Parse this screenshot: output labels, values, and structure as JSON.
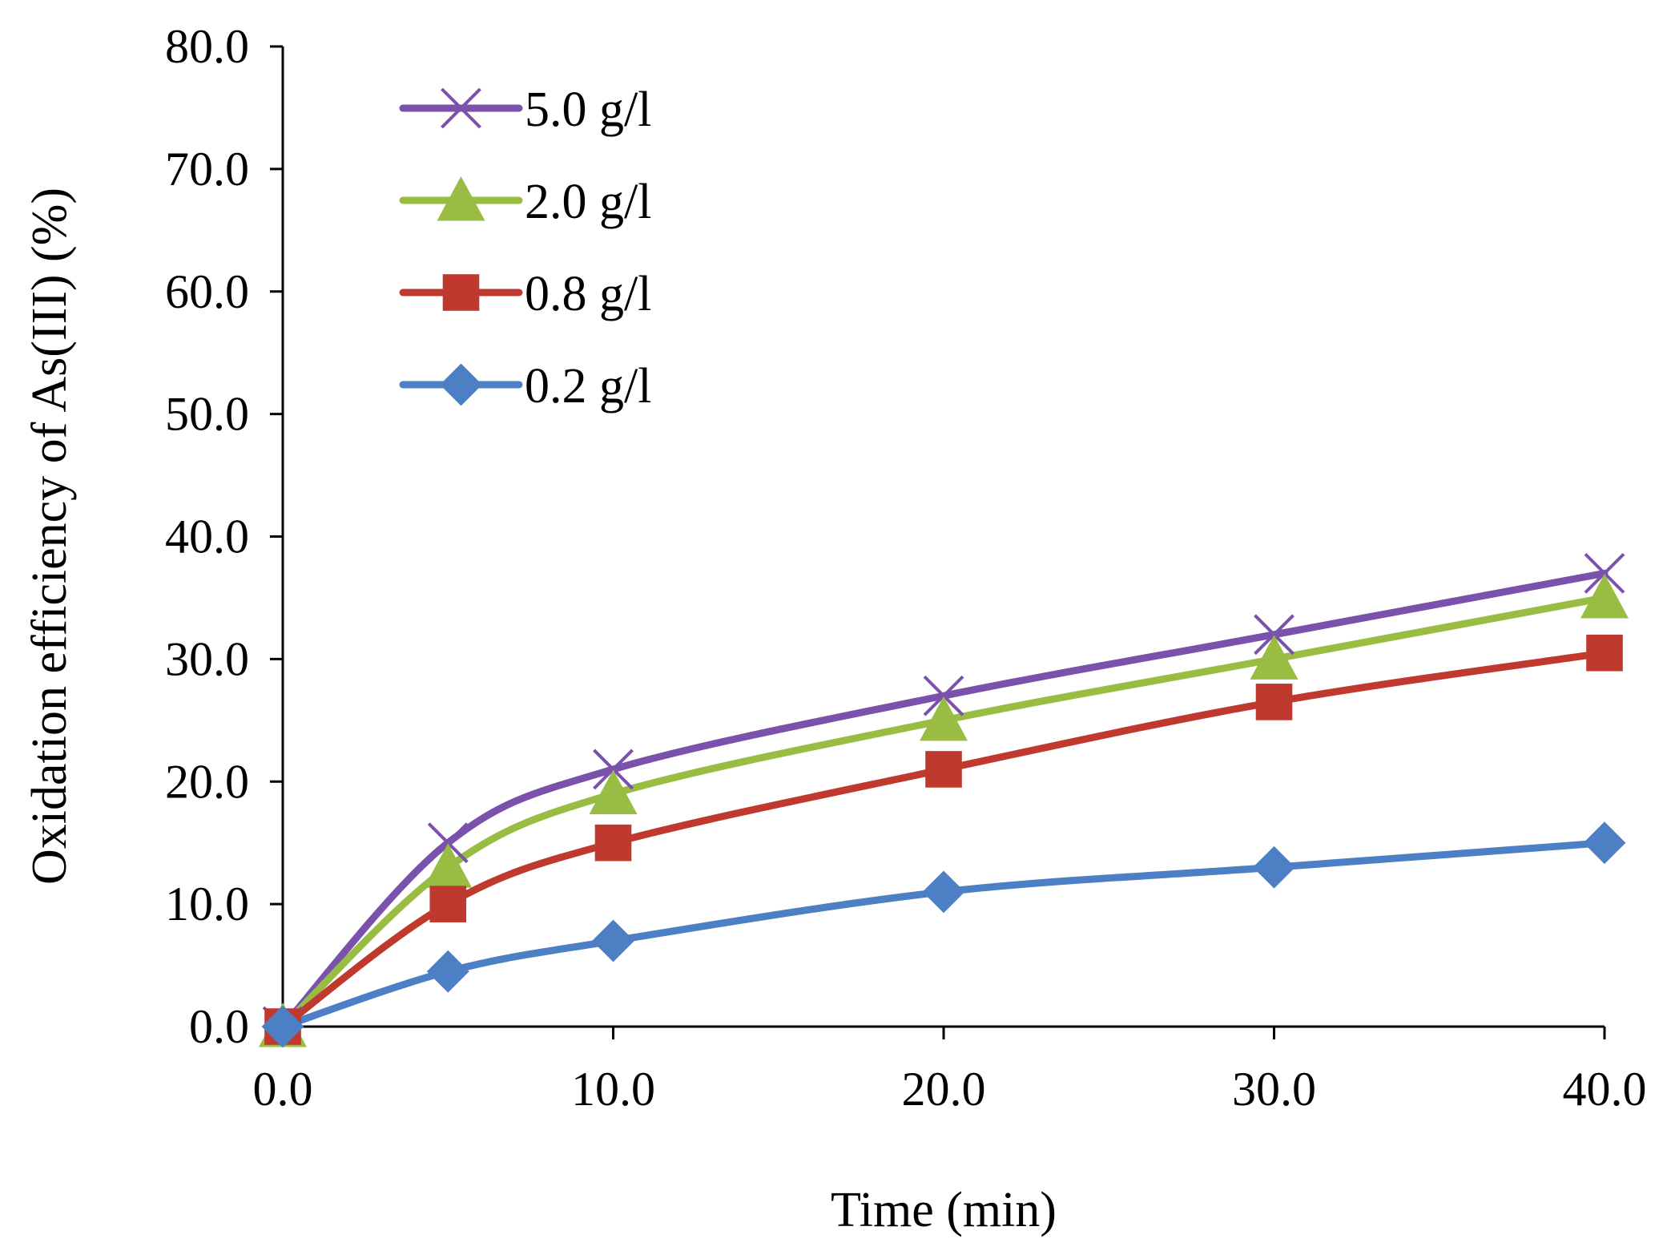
{
  "chart_data": {
    "type": "line",
    "title": "",
    "xlabel": "Time (min)",
    "ylabel": "Oxidation efficiency of As(III) (%)",
    "xlim": [
      0,
      40
    ],
    "ylim": [
      0,
      80
    ],
    "xticks": [
      0,
      10,
      20,
      30,
      40
    ],
    "xtick_labels": [
      "0.0",
      "10.0",
      "20.0",
      "30.0",
      "40.0"
    ],
    "yticks": [
      0,
      10,
      20,
      30,
      40,
      50,
      60,
      70,
      80
    ],
    "ytick_labels": [
      "0.0",
      "10.0",
      "20.0",
      "30.0",
      "40.0",
      "50.0",
      "60.0",
      "70.0",
      "80.0"
    ],
    "grid": false,
    "legend_position": "top-left",
    "x": [
      0,
      5,
      10,
      20,
      30,
      40
    ],
    "series": [
      {
        "name": "5.0 g/l",
        "marker": "x-icon",
        "color": "#7b52ab",
        "values": [
          0,
          15,
          21,
          27,
          32,
          37
        ]
      },
      {
        "name": "2.0 g/l",
        "marker": "triangle-icon",
        "color": "#98bd42",
        "values": [
          0,
          13,
          19,
          25,
          30,
          35
        ]
      },
      {
        "name": "0.8 g/l",
        "marker": "square-icon",
        "color": "#c0392f",
        "values": [
          0,
          10,
          15,
          21,
          26.5,
          30.5
        ]
      },
      {
        "name": "0.2 g/l",
        "marker": "diamond-icon",
        "color": "#4c7fc4",
        "values": [
          0,
          4.5,
          7,
          11,
          13,
          15
        ]
      }
    ]
  }
}
